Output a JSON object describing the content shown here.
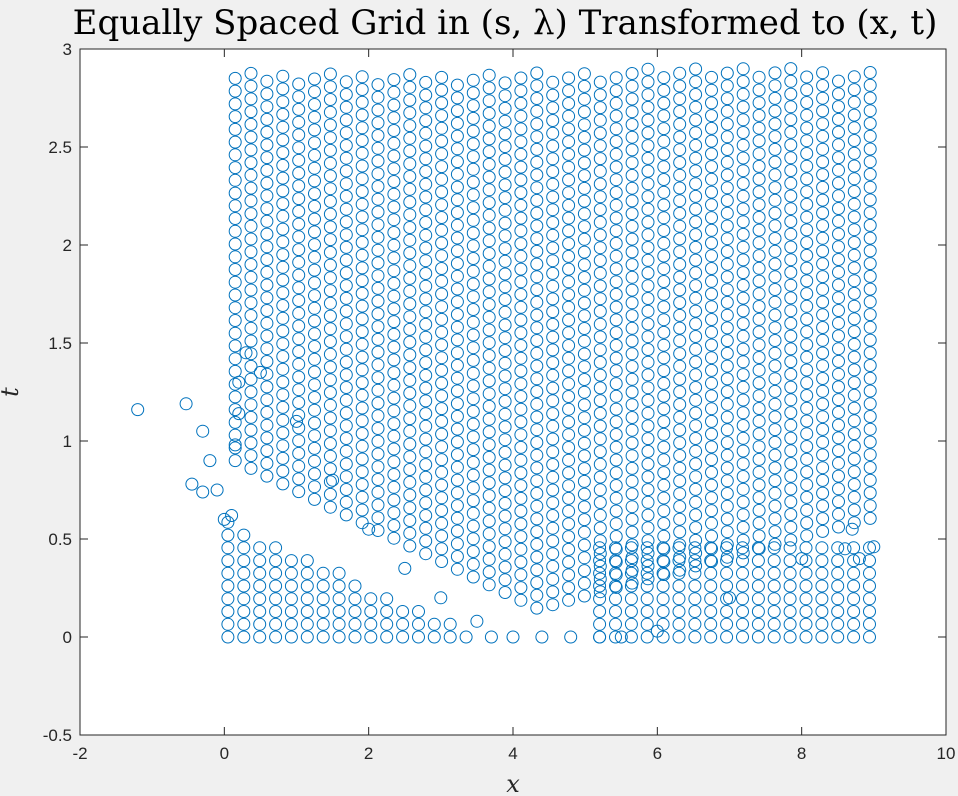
{
  "chart_data": {
    "type": "scatter",
    "title": "Equally Spaced Grid in (s, λ) Transformed to (x, t)",
    "xlabel": "x",
    "ylabel": "t",
    "xlim": [
      -2,
      10
    ],
    "ylim": [
      -0.5,
      3
    ],
    "xticks": [
      -2,
      0,
      2,
      4,
      6,
      8,
      10
    ],
    "yticks": [
      -0.5,
      0,
      0.5,
      1,
      1.5,
      2,
      2.5,
      3
    ],
    "grid": false,
    "legend": "none",
    "marker": "open-circle",
    "color": "#0072BD",
    "series": [
      {
        "description_points": "sampled outline",
        "x": [
          -1.2,
          -0.53,
          -0.3,
          -0.2,
          -0.45,
          -0.3,
          -0.1,
          0.0,
          0.1,
          0.15,
          0.2,
          0.2,
          0.3,
          0.5,
          1.0,
          1.5,
          2.0,
          2.5,
          3.0,
          3.5,
          3.7,
          4.0,
          4.4,
          4.8,
          5.2,
          5.5,
          6.0,
          7.0,
          8.0,
          8.7,
          9.0,
          8.8,
          8.6
        ],
        "y": [
          1.16,
          1.19,
          1.05,
          0.9,
          0.78,
          0.74,
          0.75,
          0.6,
          0.62,
          0.98,
          1.14,
          1.3,
          1.45,
          1.35,
          1.1,
          0.8,
          0.55,
          0.35,
          0.2,
          0.08,
          0.0,
          0.0,
          0.0,
          0.0,
          0.0,
          0.0,
          0.03,
          0.2,
          0.4,
          0.55,
          0.46,
          0.4,
          0.45
        ]
      }
    ],
    "regions": [
      {
        "name": "upper-block",
        "x": [
          0.15,
          9.0
        ],
        "y": [
          0.15,
          2.9
        ]
      },
      {
        "name": "lower-left-block",
        "x": [
          0.05,
          3.5
        ],
        "y": [
          0.0,
          0.6
        ]
      },
      {
        "name": "lower-right-block",
        "x": [
          5.2,
          9.0
        ],
        "y": [
          0.0,
          0.48
        ]
      }
    ]
  }
}
